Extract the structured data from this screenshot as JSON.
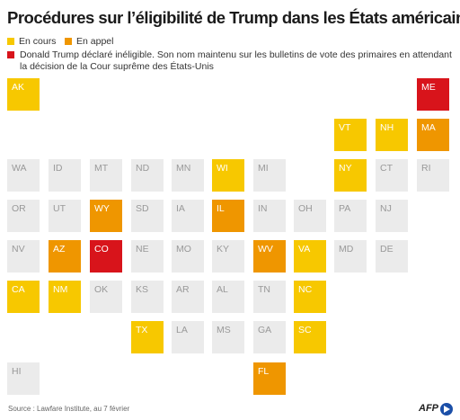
{
  "title": "Procédures sur l’éligibilité de Trump dans les États américains",
  "legend": {
    "en_cours": "En cours",
    "en_appel": "En appel",
    "ineligible": "Donald Trump déclaré inéligible. Son nom maintenu sur les bulletins de vote des primaires en attendant la décision de la Cour suprême des États-Unis"
  },
  "colors": {
    "en_cours": "#f7c800",
    "en_appel": "#ef9600",
    "ineligible": "#d8141b",
    "none": "#ebebeb"
  },
  "states": [
    {
      "code": "AK",
      "status": "encours"
    },
    {
      "code": "ME",
      "status": "ineligible"
    },
    {
      "code": "VT",
      "status": "encours"
    },
    {
      "code": "NH",
      "status": "encours"
    },
    {
      "code": "MA",
      "status": "appel"
    },
    {
      "code": "WA",
      "status": "none"
    },
    {
      "code": "ID",
      "status": "none"
    },
    {
      "code": "MT",
      "status": "none"
    },
    {
      "code": "ND",
      "status": "none"
    },
    {
      "code": "MN",
      "status": "none"
    },
    {
      "code": "WI",
      "status": "encours"
    },
    {
      "code": "MI",
      "status": "none"
    },
    {
      "code": "NY",
      "status": "encours"
    },
    {
      "code": "CT",
      "status": "none"
    },
    {
      "code": "RI",
      "status": "none"
    },
    {
      "code": "OR",
      "status": "none"
    },
    {
      "code": "UT",
      "status": "none"
    },
    {
      "code": "WY",
      "status": "appel"
    },
    {
      "code": "SD",
      "status": "none"
    },
    {
      "code": "IA",
      "status": "none"
    },
    {
      "code": "IL",
      "status": "appel"
    },
    {
      "code": "IN",
      "status": "none"
    },
    {
      "code": "OH",
      "status": "none"
    },
    {
      "code": "PA",
      "status": "none"
    },
    {
      "code": "NJ",
      "status": "none"
    },
    {
      "code": "NV",
      "status": "none"
    },
    {
      "code": "AZ",
      "status": "appel"
    },
    {
      "code": "CO",
      "status": "ineligible"
    },
    {
      "code": "NE",
      "status": "none"
    },
    {
      "code": "MO",
      "status": "none"
    },
    {
      "code": "KY",
      "status": "none"
    },
    {
      "code": "WV",
      "status": "appel"
    },
    {
      "code": "VA",
      "status": "encours"
    },
    {
      "code": "MD",
      "status": "none"
    },
    {
      "code": "DE",
      "status": "none"
    },
    {
      "code": "CA",
      "status": "encours"
    },
    {
      "code": "NM",
      "status": "encours"
    },
    {
      "code": "OK",
      "status": "none"
    },
    {
      "code": "KS",
      "status": "none"
    },
    {
      "code": "AR",
      "status": "none"
    },
    {
      "code": "AL",
      "status": "none"
    },
    {
      "code": "TN",
      "status": "none"
    },
    {
      "code": "NC",
      "status": "encours"
    },
    {
      "code": "TX",
      "status": "encours"
    },
    {
      "code": "LA",
      "status": "none"
    },
    {
      "code": "MS",
      "status": "none"
    },
    {
      "code": "GA",
      "status": "none"
    },
    {
      "code": "SC",
      "status": "encours"
    },
    {
      "code": "HI",
      "status": "none"
    },
    {
      "code": "FL",
      "status": "appel"
    }
  ],
  "source": "Source : Lawfare Institute, au 7 février",
  "logo": "AFP"
}
